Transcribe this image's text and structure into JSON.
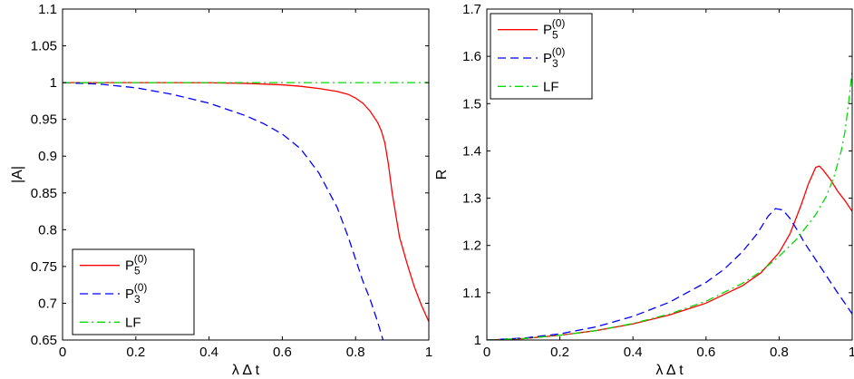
{
  "chart_data": [
    {
      "type": "line",
      "xlabel": "λ Δ t",
      "ylabel": "|A|",
      "xlim": [
        0,
        1
      ],
      "ylim": [
        0.65,
        1.1
      ],
      "xticks": [
        "0",
        "0.2",
        "0.4",
        "0.6",
        "0.8",
        "1"
      ],
      "yticks": [
        "0.65",
        "0.7",
        "0.75",
        "0.8",
        "0.85",
        "0.9",
        "0.95",
        "1",
        "1.05",
        "1.1"
      ],
      "legend_position": "bottom-left",
      "grid": false,
      "series": [
        {
          "name": "P5(0)",
          "base": "P",
          "sub": "5",
          "sup": "(0)",
          "color": "#ff0000",
          "style": "solid",
          "x": [
            0,
            0.1,
            0.2,
            0.3,
            0.4,
            0.5,
            0.6,
            0.65,
            0.7,
            0.75,
            0.78,
            0.8,
            0.82,
            0.84,
            0.86,
            0.87,
            0.88,
            0.89,
            0.9,
            0.92,
            0.94,
            0.96,
            0.98,
            1.0
          ],
          "y": [
            1,
            1,
            1,
            1,
            0.9998,
            0.999,
            0.997,
            0.995,
            0.992,
            0.988,
            0.984,
            0.979,
            0.972,
            0.961,
            0.946,
            0.935,
            0.918,
            0.888,
            0.85,
            0.79,
            0.755,
            0.723,
            0.697,
            0.675
          ]
        },
        {
          "name": "P3(0)",
          "base": "P",
          "sub": "3",
          "sup": "(0)",
          "color": "#0000ff",
          "style": "dashed",
          "x": [
            0,
            0.1,
            0.2,
            0.3,
            0.4,
            0.5,
            0.55,
            0.6,
            0.65,
            0.7,
            0.75,
            0.78,
            0.8,
            0.82,
            0.84,
            0.86,
            0.875
          ],
          "y": [
            1,
            0.998,
            0.993,
            0.984,
            0.972,
            0.955,
            0.944,
            0.93,
            0.91,
            0.877,
            0.83,
            0.79,
            0.76,
            0.73,
            0.705,
            0.675,
            0.65
          ]
        },
        {
          "name": "LF",
          "base": "LF",
          "sub": "",
          "sup": "",
          "color": "#00dd00",
          "style": "dashdot",
          "x": [
            0,
            1
          ],
          "y": [
            1,
            1
          ]
        }
      ]
    },
    {
      "type": "line",
      "xlabel": "λ Δ t",
      "ylabel": "R",
      "xlim": [
        0,
        1
      ],
      "ylim": [
        1,
        1.7
      ],
      "xticks": [
        "0",
        "0.2",
        "0.4",
        "0.6",
        "0.8",
        "1"
      ],
      "yticks": [
        "1",
        "1.1",
        "1.2",
        "1.3",
        "1.4",
        "1.5",
        "1.6",
        "1.7"
      ],
      "legend_position": "top-left",
      "grid": false,
      "series": [
        {
          "name": "P5(0)",
          "base": "P",
          "sub": "5",
          "sup": "(0)",
          "color": "#ff0000",
          "style": "solid",
          "x": [
            0,
            0.1,
            0.2,
            0.3,
            0.4,
            0.5,
            0.6,
            0.7,
            0.75,
            0.8,
            0.83,
            0.86,
            0.88,
            0.9,
            0.91,
            0.92,
            0.94,
            0.96,
            0.98,
            1.0
          ],
          "y": [
            1,
            1.003,
            1.01,
            1.02,
            1.034,
            1.053,
            1.078,
            1.115,
            1.142,
            1.185,
            1.225,
            1.285,
            1.33,
            1.365,
            1.368,
            1.36,
            1.34,
            1.315,
            1.295,
            1.272
          ]
        },
        {
          "name": "P3(0)",
          "base": "P",
          "sub": "3",
          "sup": "(0)",
          "color": "#0000ff",
          "style": "dashed",
          "x": [
            0,
            0.1,
            0.2,
            0.3,
            0.4,
            0.5,
            0.6,
            0.65,
            0.7,
            0.74,
            0.77,
            0.79,
            0.81,
            0.83,
            0.85,
            0.87,
            0.9,
            0.93,
            0.96,
            0.98,
            1.0
          ],
          "y": [
            1,
            1.004,
            1.013,
            1.028,
            1.05,
            1.08,
            1.122,
            1.15,
            1.187,
            1.225,
            1.262,
            1.278,
            1.275,
            1.257,
            1.232,
            1.205,
            1.17,
            1.135,
            1.1,
            1.078,
            1.055
          ]
        },
        {
          "name": "LF",
          "base": "LF",
          "sub": "",
          "sup": "",
          "color": "#00dd00",
          "style": "dashdot",
          "x": [
            0,
            0.1,
            0.2,
            0.3,
            0.4,
            0.5,
            0.6,
            0.7,
            0.75,
            0.8,
            0.85,
            0.9,
            0.93,
            0.95,
            0.97,
            0.98,
            0.99,
            1.0
          ],
          "y": [
            1,
            1.003,
            1.01,
            1.02,
            1.035,
            1.055,
            1.082,
            1.12,
            1.145,
            1.177,
            1.215,
            1.265,
            1.305,
            1.345,
            1.4,
            1.44,
            1.5,
            1.57
          ]
        }
      ]
    }
  ]
}
